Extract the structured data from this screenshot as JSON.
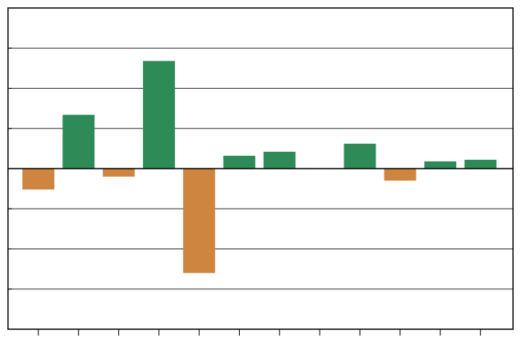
{
  "chart_data": {
    "type": "bar",
    "categories": [
      null,
      null,
      null,
      null,
      null,
      null,
      null,
      null,
      null,
      null,
      null,
      null
    ],
    "values": [
      -0.52,
      1.34,
      -0.2,
      2.68,
      -2.6,
      0.32,
      0.42,
      0,
      0.62,
      -0.3,
      0.18,
      0.22
    ],
    "positive_color": "#2e8b57",
    "negative_color": "#cd853f",
    "ylim": [
      -4,
      4
    ],
    "yticks": [
      -4,
      -3,
      -2,
      -1,
      0,
      1,
      2,
      3,
      4
    ],
    "grid": true
  }
}
